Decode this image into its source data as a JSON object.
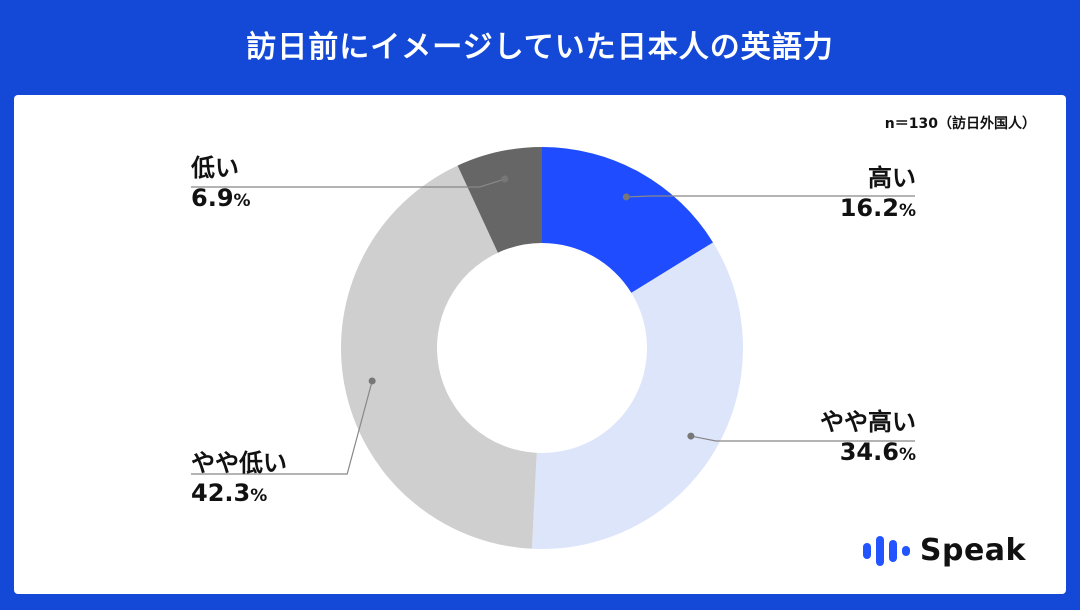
{
  "title": "訪日前にイメージしていた日本人の英語力",
  "sample_note": "n＝130（訪日外国人）",
  "chart_data": {
    "type": "pie",
    "donut": true,
    "title": "訪日前にイメージしていた日本人の英語力",
    "categories": [
      "高い",
      "やや高い",
      "やや低い",
      "低い"
    ],
    "values": [
      16.2,
      34.6,
      42.3,
      6.9
    ],
    "value_labels": [
      "16.2",
      "34.6",
      "42.3",
      "6.9"
    ],
    "unit": "%",
    "colors": [
      "#1f4cff",
      "#dde5fb",
      "#cfcfcf",
      "#666666"
    ],
    "start_angle": "12 o'clock",
    "direction": "clockwise"
  },
  "logo": {
    "text": "Speak",
    "color": "#2255ff"
  }
}
